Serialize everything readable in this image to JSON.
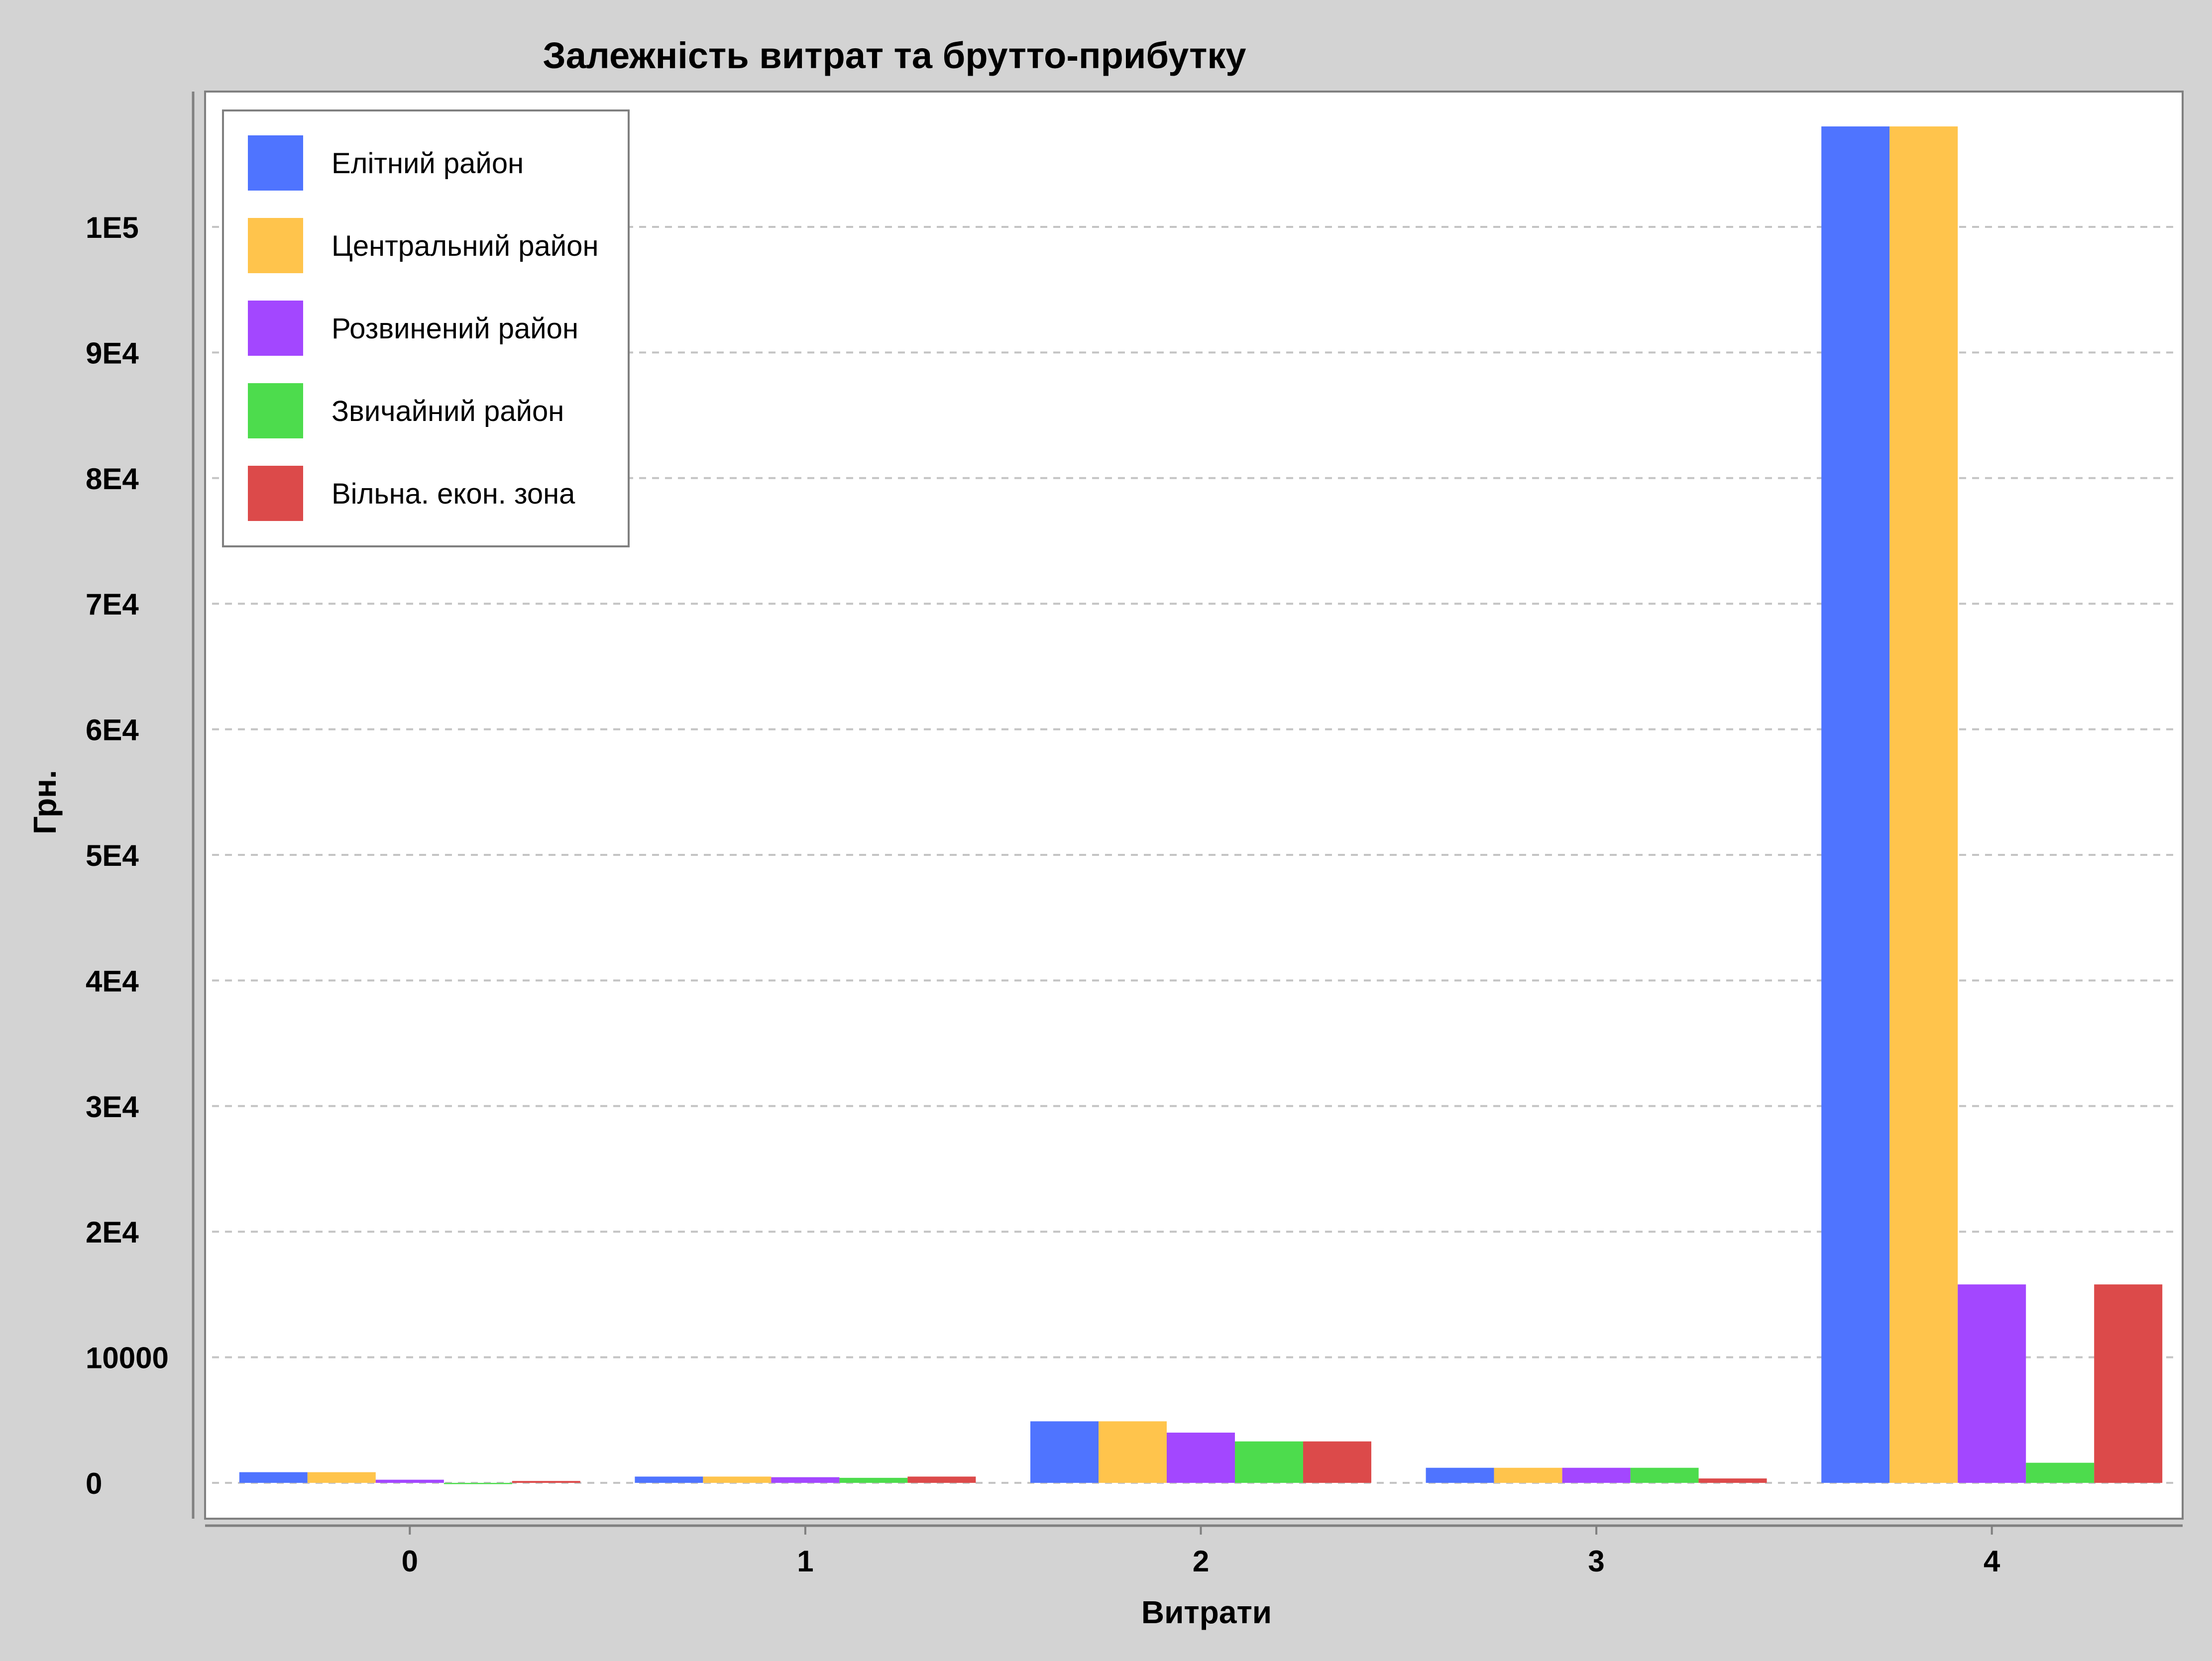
{
  "chart_data": {
    "type": "bar",
    "title": "Залежність витрат та  брутто-прибутку",
    "xlabel": "Витрати",
    "ylabel": "Грн.",
    "categories": [
      "0",
      "1",
      "2",
      "3",
      "4"
    ],
    "ylim": [
      -1500,
      114000
    ],
    "yticks": [
      {
        "value": 0,
        "label": "0"
      },
      {
        "value": 10000,
        "label": "10000"
      },
      {
        "value": 20000,
        "label": "2E4"
      },
      {
        "value": 30000,
        "label": "3E4"
      },
      {
        "value": 40000,
        "label": "4E4"
      },
      {
        "value": 50000,
        "label": "5E4"
      },
      {
        "value": 60000,
        "label": "6E4"
      },
      {
        "value": 70000,
        "label": "7E4"
      },
      {
        "value": 80000,
        "label": "8E4"
      },
      {
        "value": 90000,
        "label": "9E4"
      },
      {
        "value": 100000,
        "label": "1E5"
      }
    ],
    "grid": true,
    "legend_position": "top-left",
    "series": [
      {
        "name": "Елітний район",
        "color": "#4f74ff",
        "values": [
          850,
          500,
          4900,
          1200,
          108000
        ]
      },
      {
        "name": "Центральний район",
        "color": "#ffc44c",
        "values": [
          850,
          500,
          4900,
          1200,
          108000
        ]
      },
      {
        "name": "Розвинений район",
        "color": "#a347ff",
        "values": [
          250,
          450,
          4000,
          1200,
          15800
        ]
      },
      {
        "name": "Звичайний район",
        "color": "#4ddc4d",
        "values": [
          -100,
          400,
          3300,
          1200,
          1600
        ]
      },
      {
        "name": "Вільна. екон. зона",
        "color": "#dc4a4a",
        "values": [
          150,
          500,
          3300,
          350,
          15800
        ]
      }
    ]
  }
}
